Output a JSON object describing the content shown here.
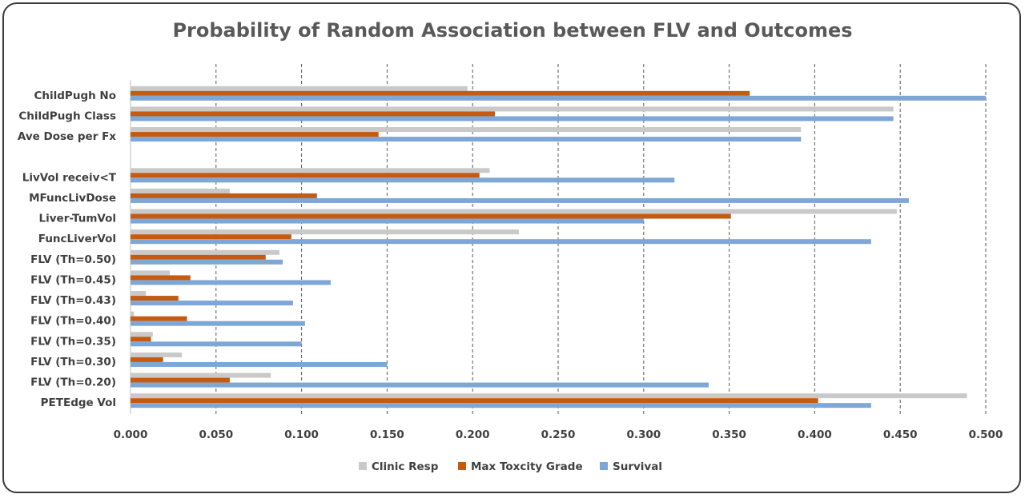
{
  "chart_data": {
    "type": "bar",
    "orientation": "horizontal",
    "title": "Probability of Random Association between FLV and Outcomes",
    "xlabel": "",
    "ylabel": "",
    "xlim": [
      0,
      0.5
    ],
    "x_ticks": [
      "0.000",
      "0.050",
      "0.100",
      "0.150",
      "0.200",
      "0.250",
      "0.300",
      "0.350",
      "0.400",
      "0.450",
      "0.500"
    ],
    "grid": "vertical dashed",
    "legend_position": "bottom",
    "categories": [
      "ChildPugh No",
      "ChildPugh Class",
      "Ave Dose per Fx",
      "",
      "LivVol receiv<T",
      "MFuncLivDose",
      "Liver-TumVol",
      "FuncLiverVol",
      "FLV (Th=0.50)",
      "FLV (Th=0.45)",
      "FLV (Th=0.43)",
      "FLV (Th=0.40)",
      "FLV (Th=0.35)",
      "FLV (Th=0.30)",
      "FLV (Th=0.20)",
      "PETEdge Vol"
    ],
    "series": [
      {
        "name": "Clinic Resp",
        "color": "#c9c9c9",
        "values": [
          0.197,
          0.446,
          0.392,
          null,
          0.21,
          0.058,
          0.448,
          0.227,
          0.087,
          0.023,
          0.009,
          0.002,
          0.013,
          0.03,
          0.082,
          0.489
        ]
      },
      {
        "name": "Max Toxcity Grade",
        "color": "#c55a11",
        "values": [
          0.362,
          0.213,
          0.145,
          null,
          0.204,
          0.109,
          0.351,
          0.094,
          0.079,
          0.035,
          0.028,
          0.033,
          0.012,
          0.019,
          0.058,
          0.402
        ]
      },
      {
        "name": "Survival",
        "color": "#7fa7d6",
        "values": [
          0.5,
          0.446,
          0.392,
          null,
          0.318,
          0.455,
          0.3,
          0.433,
          0.089,
          0.117,
          0.095,
          0.102,
          0.1,
          0.15,
          0.338,
          0.433
        ]
      }
    ]
  }
}
